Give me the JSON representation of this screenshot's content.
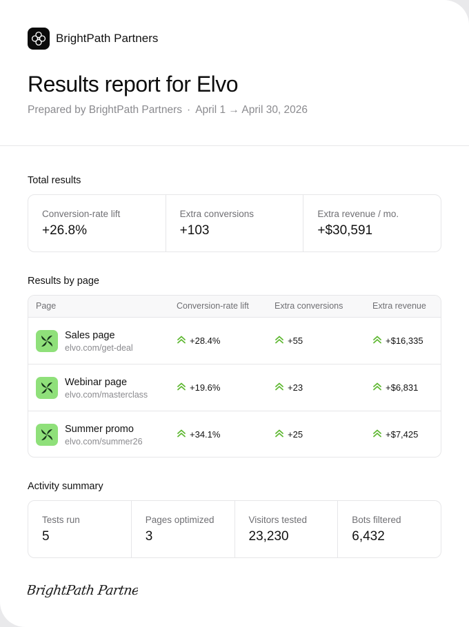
{
  "brand": {
    "name": "BrightPath Partners",
    "logo_icon": "flower-icon"
  },
  "header": {
    "title": "Results report for Elvo",
    "prepared_by": "Prepared by BrightPath Partners",
    "separator": "·",
    "date_range": "April 1 → April 30, 2026"
  },
  "total_results": {
    "label": "Total results",
    "stats": [
      {
        "label": "Conversion-rate lift",
        "value": "+26.8%"
      },
      {
        "label": "Extra conversions",
        "value": "+103"
      },
      {
        "label": "Extra revenue / mo.",
        "value": "+$30,591"
      }
    ]
  },
  "results_by_page": {
    "label": "Results by page",
    "columns": [
      "Page",
      "Conversion-rate lift",
      "Extra conversions",
      "Extra revenue"
    ],
    "rows": [
      {
        "name": "Sales page",
        "url": "elvo.com/get-deal",
        "lift": "+28.4%",
        "conversions": "+55",
        "revenue": "+$16,335"
      },
      {
        "name": "Webinar page",
        "url": "elvo.com/masterclass",
        "lift": "+19.6%",
        "conversions": "+23",
        "revenue": "+$6,831"
      },
      {
        "name": "Summer promo",
        "url": "elvo.com/summer26",
        "lift": "+34.1%",
        "conversions": "+25",
        "revenue": "+$7,425"
      }
    ],
    "up_icon": "double-chevron-up-icon",
    "accent_color": "#5fb832"
  },
  "activity_summary": {
    "label": "Activity summary",
    "stats": [
      {
        "label": "Tests run",
        "value": "5"
      },
      {
        "label": "Pages optimized",
        "value": "3"
      },
      {
        "label": "Visitors tested",
        "value": "23,230"
      },
      {
        "label": "Bots filtered",
        "value": "6,432"
      }
    ]
  },
  "signature": {
    "text": "BrightPath Partners"
  }
}
